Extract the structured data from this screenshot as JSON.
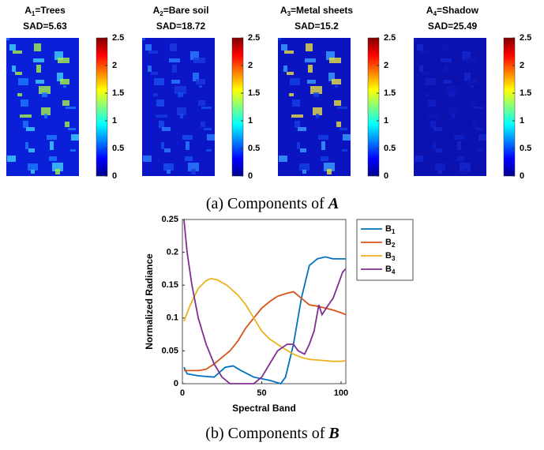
{
  "figure_a": {
    "panels": [
      {
        "title": "A1=Trees",
        "sad": "SAD=5.63"
      },
      {
        "title": "A2=Bare soil",
        "sad": "SAD=18.72"
      },
      {
        "title": "A3=Metal sheets",
        "sad": "SAD=15.2"
      },
      {
        "title": "A4=Shadow",
        "sad": "SAD=25.49"
      }
    ],
    "colorbar": {
      "lim": [
        0,
        2.5
      ],
      "ticks": [
        0,
        0.5,
        1,
        1.5,
        2,
        2.5
      ]
    },
    "caption": "(a) Components of A"
  },
  "chart_data": {
    "type": "line",
    "xlabel": "Spectral Band",
    "ylabel": "Normalized Radiance",
    "xlim": [
      0,
      103
    ],
    "ylim": [
      0,
      0.25
    ],
    "xticks": [
      0,
      50,
      100
    ],
    "yticks": [
      0,
      0.05,
      0.1,
      0.15,
      0.2,
      0.25
    ],
    "legend": "outside-right",
    "series": [
      {
        "name": "B1",
        "color": "#0072bd",
        "x": [
          1,
          3,
          10,
          20,
          27,
          32,
          37,
          45,
          55,
          62,
          65,
          70,
          75,
          80,
          85,
          90,
          95,
          100,
          103
        ],
        "values": [
          0.025,
          0.015,
          0.012,
          0.01,
          0.025,
          0.027,
          0.02,
          0.01,
          0.005,
          0,
          0.01,
          0.06,
          0.13,
          0.18,
          0.19,
          0.193,
          0.19,
          0.19,
          0.19
        ]
      },
      {
        "name": "B2",
        "color": "#d95319",
        "x": [
          1,
          5,
          10,
          15,
          20,
          25,
          30,
          35,
          40,
          45,
          50,
          55,
          60,
          65,
          70,
          75,
          80,
          85,
          90,
          95,
          100,
          103
        ],
        "values": [
          0.02,
          0.02,
          0.02,
          0.022,
          0.03,
          0.04,
          0.05,
          0.065,
          0.085,
          0.1,
          0.115,
          0.125,
          0.133,
          0.137,
          0.14,
          0.13,
          0.12,
          0.118,
          0.115,
          0.112,
          0.108,
          0.105
        ]
      },
      {
        "name": "B3",
        "color": "#edb120",
        "x": [
          1,
          5,
          10,
          15,
          18,
          22,
          28,
          35,
          40,
          45,
          50,
          55,
          60,
          65,
          70,
          75,
          80,
          85,
          90,
          95,
          100,
          103
        ],
        "values": [
          0.095,
          0.12,
          0.145,
          0.157,
          0.16,
          0.158,
          0.15,
          0.135,
          0.12,
          0.1,
          0.08,
          0.068,
          0.06,
          0.052,
          0.045,
          0.04,
          0.037,
          0.036,
          0.035,
          0.034,
          0.034,
          0.035
        ]
      },
      {
        "name": "B4",
        "color": "#7e2f8e",
        "x": [
          1,
          3,
          6,
          10,
          15,
          20,
          25,
          30,
          35,
          40,
          45,
          50,
          55,
          60,
          63,
          66,
          70,
          73,
          77,
          80,
          83,
          86,
          88,
          92,
          95,
          98,
          101,
          103
        ],
        "values": [
          0.25,
          0.2,
          0.15,
          0.1,
          0.06,
          0.03,
          0.01,
          0,
          0,
          0,
          0,
          0.01,
          0.03,
          0.05,
          0.055,
          0.06,
          0.06,
          0.05,
          0.045,
          0.06,
          0.08,
          0.12,
          0.105,
          0.12,
          0.13,
          0.15,
          0.17,
          0.175
        ]
      }
    ],
    "caption": "(b) Components of B"
  }
}
